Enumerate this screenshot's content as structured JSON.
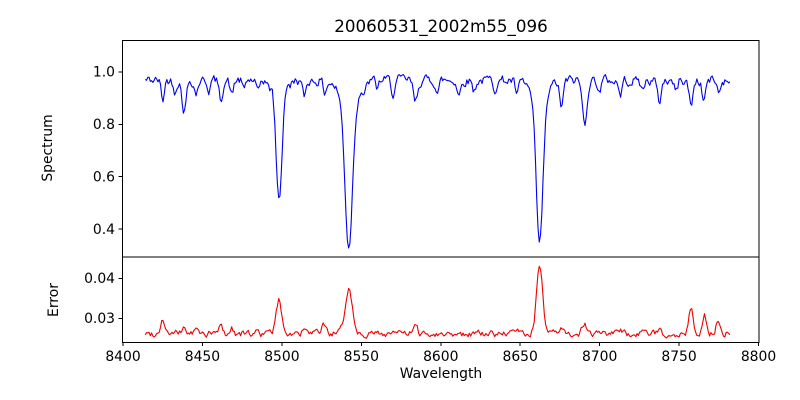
{
  "figure": {
    "title": "20060531_2002m55_096"
  },
  "axes": {
    "xlabel": "Wavelength",
    "xlim": [
      8400,
      8800
    ],
    "xticks": [
      8400,
      8450,
      8500,
      8550,
      8600,
      8650,
      8700,
      8750,
      8800
    ],
    "xtick_labels": [
      "8400",
      "8450",
      "8500",
      "8550",
      "8600",
      "8650",
      "8700",
      "8750",
      "8800"
    ]
  },
  "chart_data": [
    {
      "type": "line",
      "panel": "spectrum",
      "ylabel": "Spectrum",
      "color": "#0000ee",
      "ylim": [
        0.293,
        1.12
      ],
      "yticks": [
        0.4,
        0.6,
        0.8,
        1.0
      ],
      "ytick_labels": [
        "0.4",
        "0.6",
        "0.8",
        "1.0"
      ],
      "x_start": 8414,
      "x_end": 8782,
      "x_step": 0.8,
      "base": 0.968,
      "noise": {
        "seed": 42,
        "amp": 0.016,
        "ar": 0.55
      },
      "features": [
        {
          "c": 8425.0,
          "a": -0.075,
          "s": 1.0
        },
        {
          "c": 8432.5,
          "a": -0.04,
          "s": 0.9
        },
        {
          "c": 8438.5,
          "a": -0.115,
          "s": 1.3
        },
        {
          "c": 8446.0,
          "a": -0.05,
          "s": 1.0
        },
        {
          "c": 8454.0,
          "a": -0.035,
          "s": 0.9
        },
        {
          "c": 8461.5,
          "a": -0.075,
          "s": 1.1
        },
        {
          "c": 8468.5,
          "a": -0.06,
          "s": 1.0
        },
        {
          "c": 8476.0,
          "a": -0.04,
          "s": 0.9
        },
        {
          "c": 8485.0,
          "a": -0.055,
          "s": 1.0
        },
        {
          "c": 8492.0,
          "a": -0.035,
          "s": 0.9
        },
        {
          "c": 8498.2,
          "a": -0.46,
          "s": 1.9
        },
        {
          "c": 8505.0,
          "a": -0.03,
          "s": 0.9
        },
        {
          "c": 8514.0,
          "a": -0.065,
          "s": 1.1
        },
        {
          "c": 8527.0,
          "a": -0.045,
          "s": 1.0
        },
        {
          "c": 8542.1,
          "a": -0.55,
          "s": 2.3
        },
        {
          "c": 8542.1,
          "a": -0.09,
          "s": 5.5
        },
        {
          "c": 8552.0,
          "a": -0.04,
          "s": 1.0
        },
        {
          "c": 8560.0,
          "a": -0.03,
          "s": 0.9
        },
        {
          "c": 8570.0,
          "a": -0.05,
          "s": 1.1
        },
        {
          "c": 8584.0,
          "a": -0.085,
          "s": 1.3
        },
        {
          "c": 8598.0,
          "a": -0.045,
          "s": 1.0
        },
        {
          "c": 8611.5,
          "a": -0.055,
          "s": 1.1
        },
        {
          "c": 8621.0,
          "a": -0.04,
          "s": 0.9
        },
        {
          "c": 8634.0,
          "a": -0.03,
          "s": 0.9
        },
        {
          "c": 8648.0,
          "a": -0.055,
          "s": 1.1
        },
        {
          "c": 8662.2,
          "a": -0.55,
          "s": 2.1
        },
        {
          "c": 8662.2,
          "a": -0.08,
          "s": 5.0
        },
        {
          "c": 8676.0,
          "a": -0.1,
          "s": 1.2
        },
        {
          "c": 8690.5,
          "a": -0.165,
          "s": 1.4
        },
        {
          "c": 8700.0,
          "a": -0.04,
          "s": 1.0
        },
        {
          "c": 8713.0,
          "a": -0.055,
          "s": 1.1
        },
        {
          "c": 8727.0,
          "a": -0.04,
          "s": 1.0
        },
        {
          "c": 8737.5,
          "a": -0.085,
          "s": 1.2
        },
        {
          "c": 8748.0,
          "a": -0.045,
          "s": 1.0
        },
        {
          "c": 8757.5,
          "a": -0.095,
          "s": 1.2
        },
        {
          "c": 8765.5,
          "a": -0.075,
          "s": 1.1
        },
        {
          "c": 8775.0,
          "a": -0.05,
          "s": 1.0
        }
      ]
    },
    {
      "type": "line",
      "panel": "error",
      "ylabel": "Error",
      "color": "#ee0000",
      "ylim": [
        0.024,
        0.0453
      ],
      "yticks": [
        0.03,
        0.04
      ],
      "ytick_labels": [
        "0.03",
        "0.04"
      ],
      "x_start": 8414,
      "x_end": 8782,
      "x_step": 0.8,
      "base": 0.0262,
      "noise": {
        "seed": 99,
        "amp": 0.0007,
        "ar": 0.5
      },
      "features": [
        {
          "c": 8425.0,
          "a": 0.0036,
          "s": 1.4
        },
        {
          "c": 8438.5,
          "a": 0.0016,
          "s": 1.2
        },
        {
          "c": 8446.0,
          "a": 0.0012,
          "s": 1.0
        },
        {
          "c": 8461.5,
          "a": 0.002,
          "s": 1.2
        },
        {
          "c": 8468.5,
          "a": 0.0014,
          "s": 1.0
        },
        {
          "c": 8485.0,
          "a": 0.001,
          "s": 1.0
        },
        {
          "c": 8498.2,
          "a": 0.0082,
          "s": 1.8
        },
        {
          "c": 8514.0,
          "a": 0.0011,
          "s": 1.0
        },
        {
          "c": 8526.5,
          "a": 0.0024,
          "s": 1.3
        },
        {
          "c": 8542.1,
          "a": 0.0115,
          "s": 2.2
        },
        {
          "c": 8570.0,
          "a": 0.0008,
          "s": 1.0
        },
        {
          "c": 8584.0,
          "a": 0.0016,
          "s": 1.2
        },
        {
          "c": 8611.5,
          "a": 0.0009,
          "s": 1.0
        },
        {
          "c": 8648.0,
          "a": 0.0009,
          "s": 1.0
        },
        {
          "c": 8662.2,
          "a": 0.0172,
          "s": 1.9
        },
        {
          "c": 8676.0,
          "a": 0.0011,
          "s": 1.0
        },
        {
          "c": 8690.5,
          "a": 0.0026,
          "s": 1.4
        },
        {
          "c": 8713.0,
          "a": 0.0008,
          "s": 1.0
        },
        {
          "c": 8737.5,
          "a": 0.0012,
          "s": 1.1
        },
        {
          "c": 8757.5,
          "a": 0.0066,
          "s": 1.3
        },
        {
          "c": 8766.0,
          "a": 0.0044,
          "s": 1.2
        },
        {
          "c": 8774.5,
          "a": 0.0038,
          "s": 1.2
        }
      ]
    }
  ]
}
